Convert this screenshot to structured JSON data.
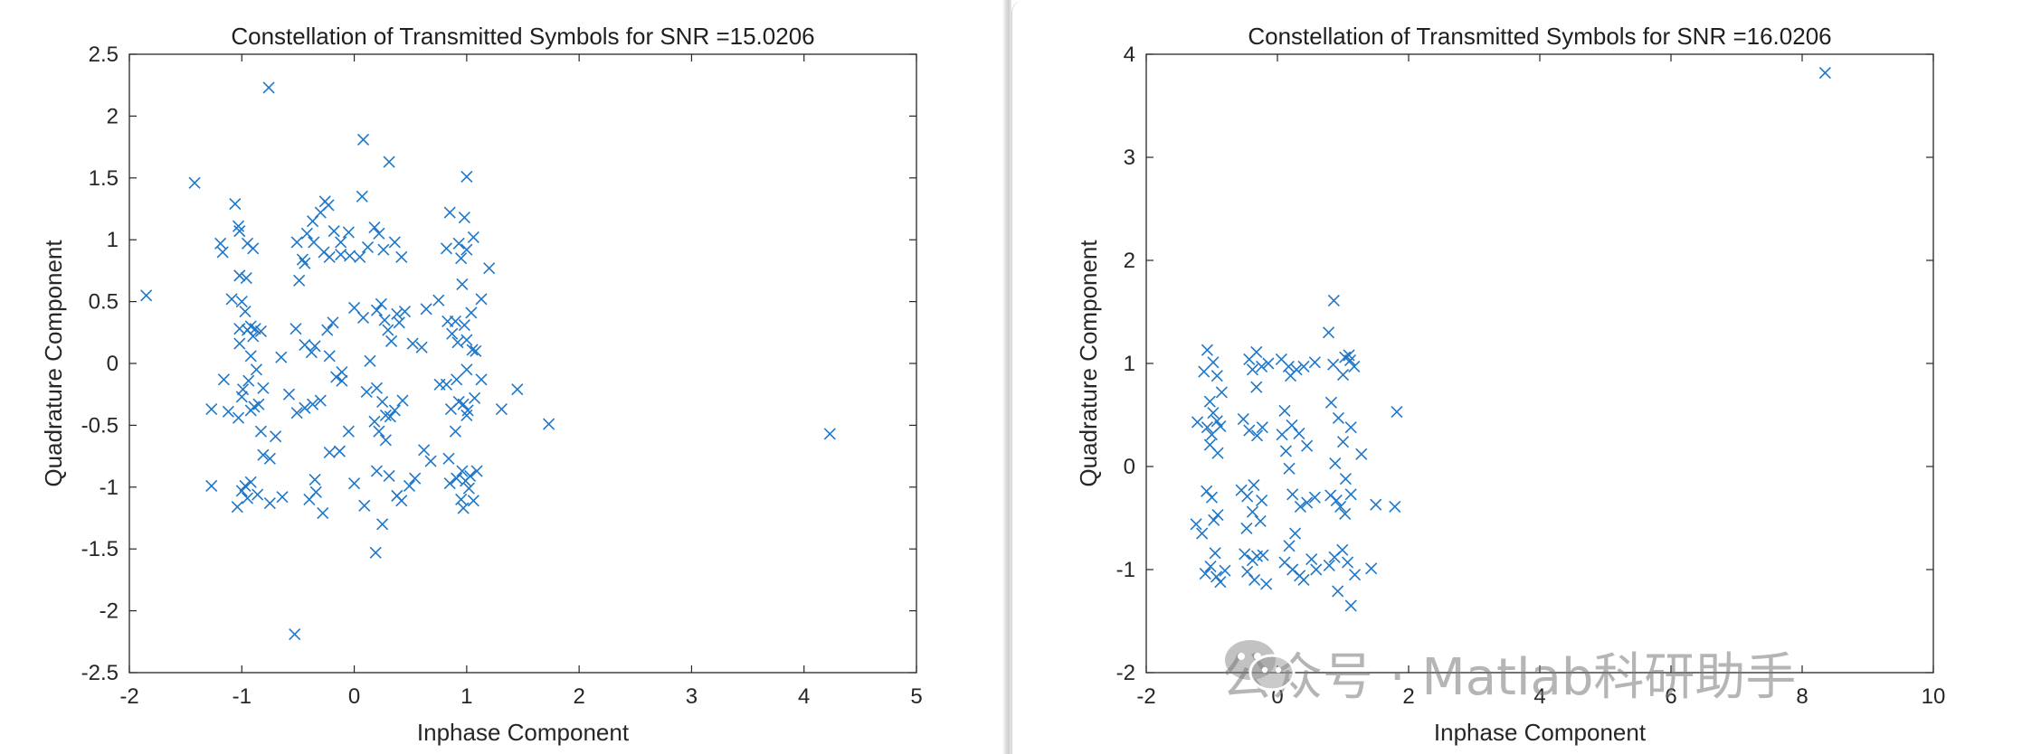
{
  "charts_meta": {
    "marker_color": "#1f77c8",
    "axis_color": "#262626"
  },
  "chart_data": [
    {
      "type": "scatter",
      "title": "Constellation of Transmitted Symbols for SNR =15.0206",
      "xlabel": "Inphase Component",
      "ylabel": "Quadrature Component",
      "xlim": [
        -2,
        5
      ],
      "ylim": [
        -2.5,
        2.5
      ],
      "xticks": [
        "-2",
        "-1",
        "0",
        "1",
        "2",
        "3",
        "4",
        "5"
      ],
      "yticks": [
        "-2.5",
        "-2",
        "-1.5",
        "-1",
        "-0.5",
        "0",
        "0.5",
        "1",
        "1.5",
        "2",
        "2.5"
      ],
      "marker": "x",
      "grid": false,
      "points": [
        [
          -1.85,
          0.55
        ],
        [
          -1.42,
          1.46
        ],
        [
          -0.76,
          2.23
        ],
        [
          0.08,
          1.81
        ],
        [
          0.31,
          1.63
        ],
        [
          1.0,
          1.51
        ],
        [
          4.23,
          -0.57
        ],
        [
          1.73,
          -0.49
        ],
        [
          1.45,
          -0.21
        ],
        [
          -0.53,
          -2.19
        ],
        [
          0.19,
          -1.53
        ],
        [
          -1.06,
          1.29
        ],
        [
          -1.19,
          0.97
        ],
        [
          -1.17,
          0.9
        ],
        [
          -1.03,
          1.11
        ],
        [
          -1.02,
          1.07
        ],
        [
          -0.95,
          0.97
        ],
        [
          -0.9,
          0.93
        ],
        [
          -1.02,
          0.71
        ],
        [
          -0.96,
          0.69
        ],
        [
          -1.09,
          0.52
        ],
        [
          -1.0,
          0.5
        ],
        [
          -1.02,
          0.28
        ],
        [
          -0.95,
          0.27
        ],
        [
          -0.92,
          0.3
        ],
        [
          -0.88,
          0.28
        ],
        [
          -0.83,
          0.26
        ],
        [
          -0.9,
          0.22
        ],
        [
          -0.97,
          0.42
        ],
        [
          -1.02,
          0.16
        ],
        [
          -0.92,
          0.06
        ],
        [
          -0.87,
          -0.05
        ],
        [
          -0.94,
          -0.14
        ],
        [
          -0.99,
          -0.21
        ],
        [
          -0.89,
          -0.35
        ],
        [
          -0.92,
          -0.38
        ],
        [
          -0.85,
          -0.33
        ],
        [
          -0.81,
          -0.2
        ],
        [
          -1.0,
          -0.27
        ],
        [
          -1.16,
          -0.13
        ],
        [
          -1.12,
          -0.39
        ],
        [
          -1.27,
          -0.37
        ],
        [
          -1.03,
          -0.44
        ],
        [
          -0.83,
          -0.55
        ],
        [
          -0.81,
          -0.74
        ],
        [
          -0.75,
          -0.77
        ],
        [
          -1.0,
          -1.03
        ],
        [
          -0.97,
          -0.99
        ],
        [
          -0.92,
          -0.96
        ],
        [
          -0.86,
          -1.06
        ],
        [
          -0.95,
          -1.09
        ],
        [
          -1.04,
          -1.16
        ],
        [
          -1.27,
          -0.99
        ],
        [
          -0.75,
          -1.13
        ],
        [
          -0.64,
          -1.08
        ],
        [
          -0.7,
          -0.59
        ],
        [
          -0.65,
          0.05
        ],
        [
          -0.51,
          0.98
        ],
        [
          -0.42,
          1.05
        ],
        [
          -0.37,
          1.15
        ],
        [
          -0.3,
          1.22
        ],
        [
          -0.26,
          1.31
        ],
        [
          -0.23,
          1.28
        ],
        [
          -0.18,
          1.07
        ],
        [
          -0.12,
          0.98
        ],
        [
          -0.05,
          1.06
        ],
        [
          0.07,
          1.35
        ],
        [
          0.18,
          1.1
        ],
        [
          0.22,
          1.05
        ],
        [
          0.12,
          0.94
        ],
        [
          -0.46,
          0.84
        ],
        [
          -0.44,
          0.81
        ],
        [
          -0.49,
          0.67
        ],
        [
          -0.36,
          0.98
        ],
        [
          -0.27,
          0.9
        ],
        [
          -0.22,
          0.86
        ],
        [
          -0.12,
          0.88
        ],
        [
          -0.04,
          0.87
        ],
        [
          0.05,
          0.86
        ],
        [
          0.26,
          0.92
        ],
        [
          0.36,
          0.98
        ],
        [
          0.42,
          0.86
        ],
        [
          -0.52,
          0.28
        ],
        [
          -0.44,
          0.15
        ],
        [
          -0.38,
          0.09
        ],
        [
          -0.35,
          0.14
        ],
        [
          -0.24,
          0.27
        ],
        [
          -0.19,
          0.33
        ],
        [
          -0.22,
          0.06
        ],
        [
          -0.11,
          -0.07
        ],
        [
          0.0,
          0.45
        ],
        [
          0.08,
          0.37
        ],
        [
          0.14,
          0.02
        ],
        [
          0.2,
          0.43
        ],
        [
          0.24,
          0.48
        ],
        [
          0.27,
          0.35
        ],
        [
          0.3,
          0.27
        ],
        [
          0.33,
          0.18
        ],
        [
          0.38,
          0.4
        ],
        [
          0.4,
          0.33
        ],
        [
          0.45,
          0.42
        ],
        [
          0.52,
          0.16
        ],
        [
          0.6,
          0.13
        ],
        [
          0.64,
          0.44
        ],
        [
          0.75,
          0.51
        ],
        [
          -0.58,
          -0.25
        ],
        [
          -0.51,
          -0.4
        ],
        [
          -0.44,
          -0.36
        ],
        [
          -0.37,
          -0.33
        ],
        [
          -0.3,
          -0.3
        ],
        [
          -0.16,
          -0.11
        ],
        [
          -0.11,
          -0.14
        ],
        [
          -0.05,
          -0.55
        ],
        [
          0.11,
          -0.23
        ],
        [
          0.2,
          -0.2
        ],
        [
          0.25,
          -0.31
        ],
        [
          0.28,
          -0.42
        ],
        [
          0.32,
          -0.43
        ],
        [
          0.36,
          -0.38
        ],
        [
          0.43,
          -0.3
        ],
        [
          0.22,
          -0.55
        ],
        [
          0.28,
          -0.62
        ],
        [
          0.18,
          -0.47
        ],
        [
          -0.4,
          -1.1
        ],
        [
          -0.35,
          -0.94
        ],
        [
          -0.34,
          -1.04
        ],
        [
          -0.28,
          -1.21
        ],
        [
          -0.22,
          -0.72
        ],
        [
          -0.13,
          -0.71
        ],
        [
          0.0,
          -0.97
        ],
        [
          0.09,
          -1.15
        ],
        [
          0.2,
          -0.87
        ],
        [
          0.25,
          -1.3
        ],
        [
          0.31,
          -0.91
        ],
        [
          0.38,
          -1.07
        ],
        [
          0.42,
          -1.11
        ],
        [
          0.49,
          -0.99
        ],
        [
          0.54,
          -0.93
        ],
        [
          0.62,
          -0.7
        ],
        [
          0.85,
          1.22
        ],
        [
          0.98,
          1.18
        ],
        [
          1.06,
          1.02
        ],
        [
          0.93,
          0.97
        ],
        [
          1.0,
          0.92
        ],
        [
          0.82,
          0.93
        ],
        [
          1.2,
          0.77
        ],
        [
          0.95,
          0.85
        ],
        [
          0.96,
          0.64
        ],
        [
          1.13,
          0.52
        ],
        [
          1.04,
          0.41
        ],
        [
          0.9,
          0.34
        ],
        [
          0.83,
          0.34
        ],
        [
          0.87,
          0.24
        ],
        [
          0.98,
          0.31
        ],
        [
          0.92,
          0.17
        ],
        [
          1.0,
          0.19
        ],
        [
          1.05,
          0.11
        ],
        [
          1.08,
          0.1
        ],
        [
          1.0,
          -0.05
        ],
        [
          1.13,
          -0.13
        ],
        [
          0.91,
          -0.13
        ],
        [
          0.82,
          -0.17
        ],
        [
          0.76,
          -0.17
        ],
        [
          0.93,
          -0.31
        ],
        [
          0.97,
          -0.33
        ],
        [
          1.01,
          -0.38
        ],
        [
          1.07,
          -0.28
        ],
        [
          0.86,
          -0.37
        ],
        [
          1.31,
          -0.37
        ],
        [
          0.9,
          -0.55
        ],
        [
          0.84,
          -0.77
        ],
        [
          0.96,
          -0.87
        ],
        [
          1.03,
          -0.91
        ],
        [
          0.99,
          -0.95
        ],
        [
          1.02,
          -1.01
        ],
        [
          1.09,
          -0.87
        ],
        [
          0.85,
          -0.97
        ],
        [
          0.91,
          -0.93
        ],
        [
          0.95,
          -1.1
        ],
        [
          0.97,
          -1.17
        ],
        [
          1.06,
          -1.11
        ],
        [
          1.0,
          -0.42
        ],
        [
          0.68,
          -0.79
        ]
      ]
    },
    {
      "type": "scatter",
      "title": "Constellation of Transmitted Symbols for SNR =16.0206",
      "xlabel": "Inphase Component",
      "ylabel": "Quadrature Component",
      "xlim": [
        -2,
        10
      ],
      "ylim": [
        -2,
        4
      ],
      "xticks": [
        "-2",
        "0",
        "2",
        "4",
        "6",
        "8",
        "10"
      ],
      "yticks": [
        "-2",
        "-1",
        "0",
        "1",
        "2",
        "3",
        "4"
      ],
      "marker": "x",
      "grid": false,
      "points": [
        [
          8.35,
          3.82
        ],
        [
          0.86,
          1.61
        ],
        [
          1.03,
          1.06
        ],
        [
          1.11,
          1.03
        ],
        [
          1.79,
          -0.39
        ],
        [
          1.5,
          -0.37
        ],
        [
          1.43,
          -0.99
        ],
        [
          1.12,
          -1.35
        ],
        [
          1.82,
          0.53
        ],
        [
          1.28,
          0.12
        ],
        [
          -1.07,
          1.13
        ],
        [
          -1.12,
          0.92
        ],
        [
          -0.98,
          1.01
        ],
        [
          -0.92,
          0.88
        ],
        [
          -1.03,
          0.63
        ],
        [
          -0.85,
          0.72
        ],
        [
          -0.98,
          0.52
        ],
        [
          -1.22,
          0.43
        ],
        [
          -1.07,
          0.38
        ],
        [
          -1.0,
          0.31
        ],
        [
          -0.92,
          0.44
        ],
        [
          -0.87,
          0.39
        ],
        [
          -1.03,
          0.21
        ],
        [
          -0.91,
          0.13
        ],
        [
          -1.08,
          -0.24
        ],
        [
          -1.0,
          -0.3
        ],
        [
          -0.97,
          -0.52
        ],
        [
          -0.91,
          -0.47
        ],
        [
          -1.24,
          -0.56
        ],
        [
          -1.15,
          -0.65
        ],
        [
          -0.95,
          -0.84
        ],
        [
          -1.02,
          -0.97
        ],
        [
          -1.1,
          -1.04
        ],
        [
          -0.93,
          -1.07
        ],
        [
          -0.87,
          -1.12
        ],
        [
          -0.8,
          -1.01
        ],
        [
          -0.43,
          1.04
        ],
        [
          -0.32,
          1.11
        ],
        [
          -0.38,
          0.94
        ],
        [
          -0.24,
          0.97
        ],
        [
          -0.14,
          1.0
        ],
        [
          -0.32,
          0.77
        ],
        [
          -0.52,
          0.46
        ],
        [
          -0.43,
          0.35
        ],
        [
          -0.31,
          0.3
        ],
        [
          -0.23,
          0.38
        ],
        [
          -0.55,
          -0.23
        ],
        [
          -0.46,
          -0.29
        ],
        [
          -0.36,
          -0.18
        ],
        [
          -0.24,
          -0.33
        ],
        [
          -0.38,
          -0.44
        ],
        [
          -0.47,
          -0.6
        ],
        [
          -0.26,
          -0.53
        ],
        [
          -0.5,
          -0.85
        ],
        [
          -0.38,
          -0.91
        ],
        [
          -0.31,
          -0.87
        ],
        [
          -0.22,
          -0.86
        ],
        [
          -0.46,
          -1.02
        ],
        [
          -0.35,
          -1.1
        ],
        [
          -0.17,
          -1.14
        ],
        [
          0.06,
          1.04
        ],
        [
          0.17,
          0.97
        ],
        [
          0.2,
          0.88
        ],
        [
          0.29,
          0.94
        ],
        [
          0.4,
          0.97
        ],
        [
          0.57,
          1.01
        ],
        [
          0.11,
          0.54
        ],
        [
          0.22,
          0.4
        ],
        [
          0.33,
          0.32
        ],
        [
          0.45,
          0.2
        ],
        [
          0.07,
          0.31
        ],
        [
          0.13,
          0.15
        ],
        [
          0.18,
          -0.02
        ],
        [
          0.23,
          -0.27
        ],
        [
          0.35,
          -0.39
        ],
        [
          0.45,
          -0.35
        ],
        [
          0.57,
          -0.3
        ],
        [
          0.27,
          -0.65
        ],
        [
          0.18,
          -0.77
        ],
        [
          0.11,
          -0.93
        ],
        [
          0.23,
          -1.0
        ],
        [
          0.34,
          -1.06
        ],
        [
          0.52,
          -0.9
        ],
        [
          0.59,
          -1.0
        ],
        [
          0.4,
          -1.1
        ],
        [
          0.78,
          1.3
        ],
        [
          0.85,
          0.99
        ],
        [
          1.0,
          0.89
        ],
        [
          0.82,
          0.62
        ],
        [
          0.93,
          0.47
        ],
        [
          1.12,
          0.38
        ],
        [
          1.0,
          0.24
        ],
        [
          0.88,
          0.03
        ],
        [
          1.04,
          -0.12
        ],
        [
          0.81,
          -0.28
        ],
        [
          0.9,
          -0.33
        ],
        [
          0.96,
          -0.39
        ],
        [
          1.03,
          -0.46
        ],
        [
          1.12,
          -0.27
        ],
        [
          0.87,
          -0.88
        ],
        [
          0.99,
          -0.81
        ],
        [
          1.07,
          -0.93
        ],
        [
          1.18,
          -1.05
        ],
        [
          0.79,
          -0.96
        ],
        [
          0.92,
          -1.21
        ],
        [
          1.17,
          0.97
        ],
        [
          1.09,
          1.08
        ]
      ]
    }
  ],
  "watermark": {
    "text": "公众号 · Matlab科研助手"
  }
}
